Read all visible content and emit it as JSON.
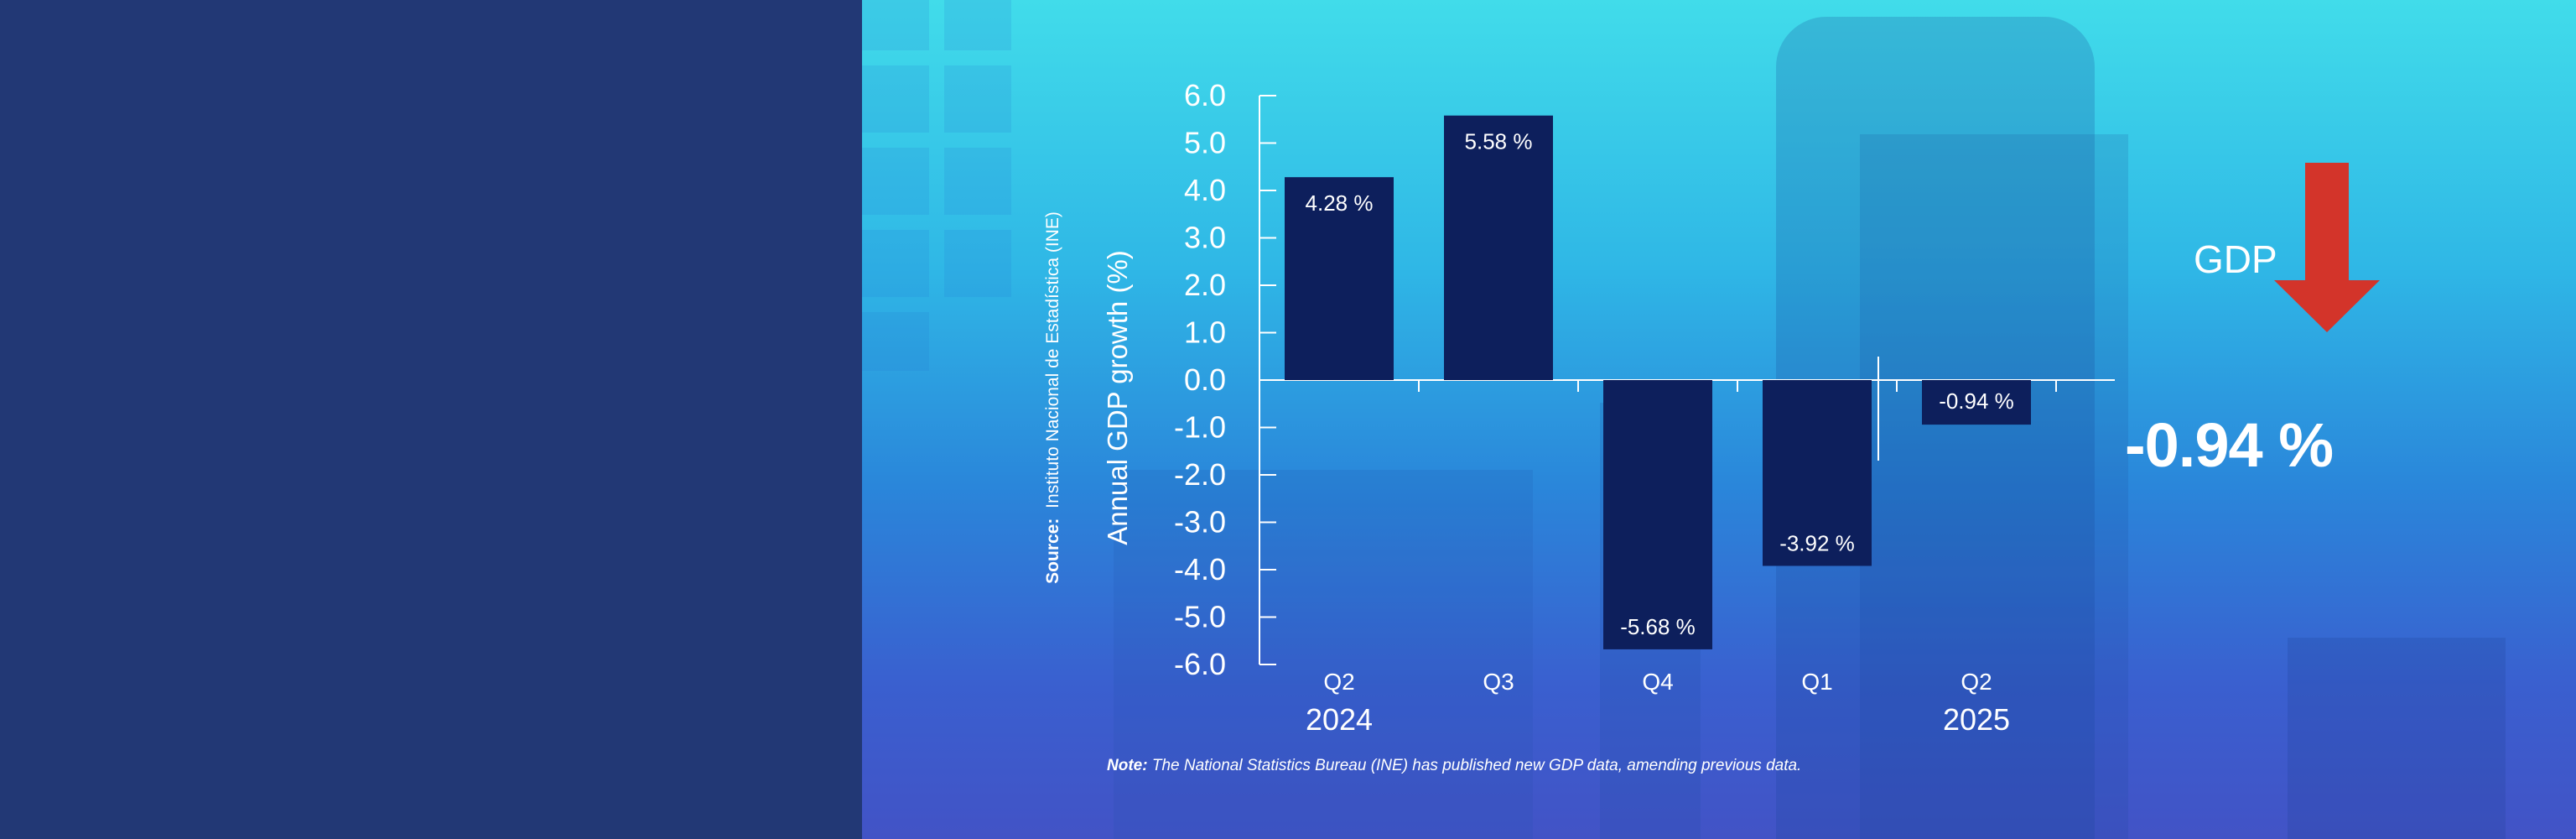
{
  "chart_data": {
    "type": "bar",
    "ylabel": "Annual GDP growth (%)",
    "source_label": "Source:",
    "source_text": "Instituto Nacional de Estadística (INE)",
    "ylim": [
      -6.0,
      6.0
    ],
    "yticks": [
      "6.0",
      "5.0",
      "4.0",
      "3.0",
      "2.0",
      "1.0",
      "0.0",
      "-1.0",
      "-2.0",
      "-3.0",
      "-4.0",
      "-5.0",
      "-6.0"
    ],
    "categories": [
      "Q2",
      "Q3",
      "Q4",
      "Q1",
      "Q2"
    ],
    "years": [
      "2024",
      "2025"
    ],
    "values": [
      4.28,
      5.58,
      -5.68,
      -3.92,
      -0.94
    ],
    "value_labels": [
      "4.28 %",
      "5.58 %",
      "-5.68 %",
      "-3.92 %",
      "-0.94 %"
    ],
    "bar_color": "#0d1f5c"
  },
  "note": {
    "label": "Note:",
    "text": "The National Statistics Bureau (INE) has published new GDP data, amending previous data."
  },
  "highlight": {
    "label": "GDP",
    "value": "-0.94 %",
    "arrow_icon": "down-arrow-icon",
    "arrow_color": "#d3342a"
  },
  "colors": {
    "left_panel": "#223875",
    "text": "#ffffff"
  }
}
